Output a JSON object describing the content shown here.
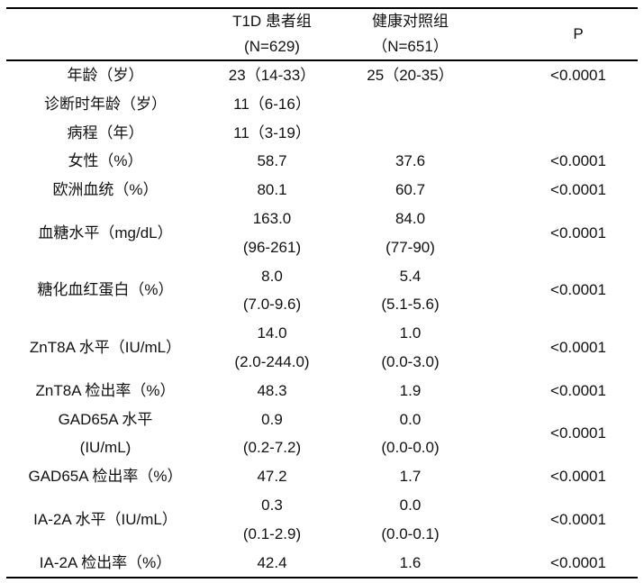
{
  "table": {
    "header": {
      "label_col": "",
      "t1d_line1": "T1D 患者组",
      "t1d_line2": "(N=629)",
      "control_line1": "健康对照组",
      "control_line2": "（N=651）",
      "p": "P"
    },
    "rows": [
      {
        "label": "年龄（岁）",
        "t1d": "23（14-33）",
        "control": "25（20-35）",
        "p": "<0.0001"
      },
      {
        "label": "诊断时年龄（岁）",
        "t1d": "11（6-16）",
        "control": "",
        "p": ""
      },
      {
        "label": "病程（年）",
        "t1d": "11（3-19）",
        "control": "",
        "p": ""
      },
      {
        "label": "女性（%）",
        "t1d": "58.7",
        "control": "37.6",
        "p": "<0.0001"
      },
      {
        "label": "欧洲血统（%）",
        "t1d": "80.1",
        "control": "60.7",
        "p": "<0.0001"
      },
      {
        "label": "血糖水平（mg/dL）",
        "t1d": "163.0",
        "t1d_line2": "(96-261)",
        "control": "84.0",
        "control_line2": "(77-90)",
        "p": "<0.0001"
      },
      {
        "label": "糖化血红蛋白（%）",
        "t1d": "8.0",
        "t1d_line2": "(7.0-9.6)",
        "control": "5.4",
        "control_line2": "(5.1-5.6)",
        "p": "<0.0001"
      },
      {
        "label": "ZnT8A 水平（IU/mL）",
        "t1d": "14.0",
        "t1d_line2": "(2.0-244.0)",
        "control": "1.0",
        "control_line2": "(0.0-3.0)",
        "p": "<0.0001"
      },
      {
        "label": "ZnT8A 检出率（%）",
        "t1d": "48.3",
        "control": "1.9",
        "p": "<0.0001"
      },
      {
        "label": "GAD65A 水平",
        "label_line2": "(IU/mL)",
        "t1d": "0.9",
        "t1d_line2": "(0.2-7.2)",
        "control": "0.0",
        "control_line2": "(0.0-0.0)",
        "p": "<0.0001"
      },
      {
        "label": "GAD65A 检出率（%）",
        "t1d": "47.2",
        "control": "1.7",
        "p": "<0.0001"
      },
      {
        "label": "IA-2A 水平（IU/mL）",
        "t1d": "0.3",
        "t1d_line2": "(0.1-2.9)",
        "control": "0.0",
        "control_line2": "(0.0-0.1)",
        "p": "<0.0001"
      },
      {
        "label": "IA-2A 检出率（%）",
        "t1d": "42.4",
        "control": "1.6",
        "p": "<0.0001"
      }
    ]
  },
  "colors": {
    "text": "#111111",
    "rule": "#000000",
    "background": "#ffffff"
  }
}
